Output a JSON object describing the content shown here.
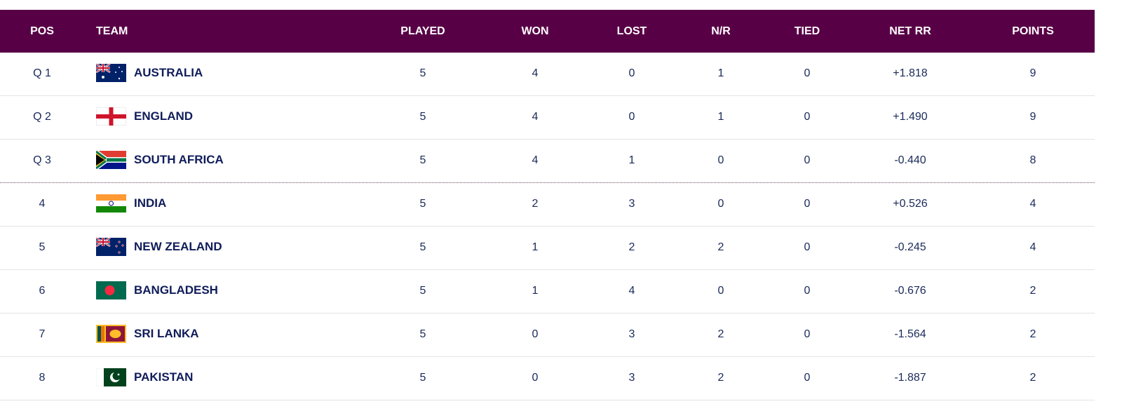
{
  "header": {
    "pos": "POS",
    "team": "TEAM",
    "played": "PLAYED",
    "won": "WON",
    "lost": "LOST",
    "nr": "N/R",
    "tied": "TIED",
    "netrr": "NET RR",
    "points": "POINTS"
  },
  "colors": {
    "header_bg": "#580046",
    "text": "#0f1c5a"
  },
  "rows": [
    {
      "pos": "Q 1",
      "team": "AUSTRALIA",
      "flag": "australia-flag-icon",
      "played": "5",
      "won": "4",
      "lost": "0",
      "nr": "1",
      "tied": "0",
      "netrr": "+1.818",
      "points": "9"
    },
    {
      "pos": "Q 2",
      "team": "ENGLAND",
      "flag": "england-flag-icon",
      "played": "5",
      "won": "4",
      "lost": "0",
      "nr": "1",
      "tied": "0",
      "netrr": "+1.490",
      "points": "9"
    },
    {
      "pos": "Q 3",
      "team": "SOUTH AFRICA",
      "flag": "south-africa-flag-icon",
      "played": "5",
      "won": "4",
      "lost": "1",
      "nr": "0",
      "tied": "0",
      "netrr": "-0.440",
      "points": "8"
    },
    {
      "pos": "4",
      "team": "INDIA",
      "flag": "india-flag-icon",
      "played": "5",
      "won": "2",
      "lost": "3",
      "nr": "0",
      "tied": "0",
      "netrr": "+0.526",
      "points": "4"
    },
    {
      "pos": "5",
      "team": "NEW ZEALAND",
      "flag": "new-zealand-flag-icon",
      "played": "5",
      "won": "1",
      "lost": "2",
      "nr": "2",
      "tied": "0",
      "netrr": "-0.245",
      "points": "4"
    },
    {
      "pos": "6",
      "team": "BANGLADESH",
      "flag": "bangladesh-flag-icon",
      "played": "5",
      "won": "1",
      "lost": "4",
      "nr": "0",
      "tied": "0",
      "netrr": "-0.676",
      "points": "2"
    },
    {
      "pos": "7",
      "team": "SRI LANKA",
      "flag": "sri-lanka-flag-icon",
      "played": "5",
      "won": "0",
      "lost": "3",
      "nr": "2",
      "tied": "0",
      "netrr": "-1.564",
      "points": "2"
    },
    {
      "pos": "8",
      "team": "PAKISTAN",
      "flag": "pakistan-flag-icon",
      "played": "5",
      "won": "0",
      "lost": "3",
      "nr": "2",
      "tied": "0",
      "netrr": "-1.887",
      "points": "2"
    }
  ]
}
